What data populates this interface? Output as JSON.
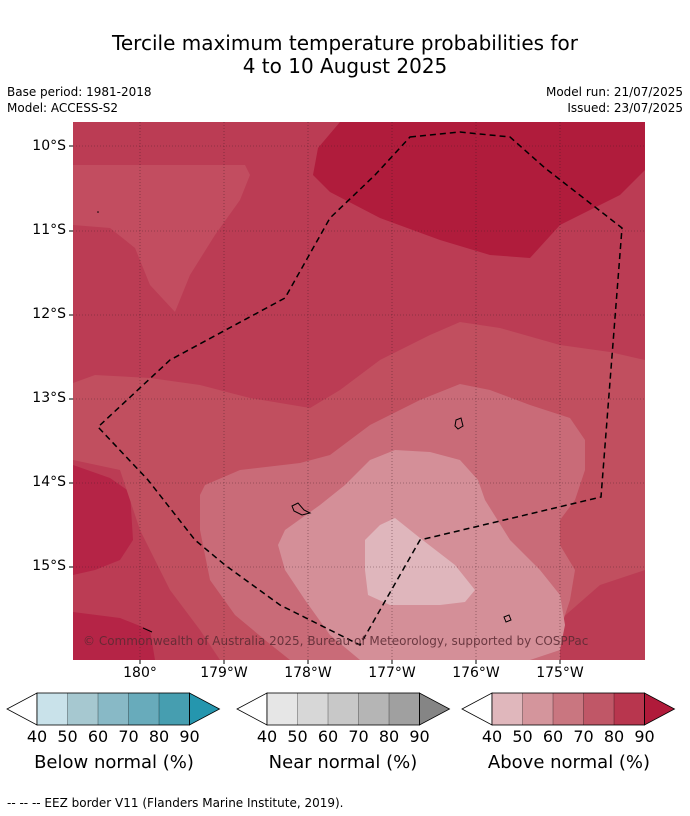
{
  "title_line1": "Tercile maximum temperature probabilities for",
  "title_line2": "4 to 10 August 2025",
  "base_period": "Base period: 1981-2018",
  "model": "Model: ACCESS-S2",
  "model_run": "Model run: 21/07/2025",
  "issued": "Issued: 23/07/2025",
  "lat_labels": [
    "10°S",
    "11°S",
    "12°S",
    "13°S",
    "14°S",
    "15°S"
  ],
  "lon_labels": [
    "180°",
    "179°W",
    "178°W",
    "177°W",
    "176°W",
    "175°W"
  ],
  "copyright": "© Commonwealth of Australia 2025, Bureau of Meteorology, supported by COSPPac",
  "legend": {
    "ticks": [
      "40",
      "50",
      "60",
      "70",
      "80",
      "90"
    ],
    "below": {
      "label": "Below normal (%)",
      "colors": [
        "#ffffff",
        "#c9e2ea",
        "#a6c8d0",
        "#88b9c6",
        "#68abbb",
        "#469eb0",
        "#2596ae"
      ]
    },
    "near": {
      "label": "Near normal (%)",
      "colors": [
        "#ffffff",
        "#e6e6e6",
        "#d7d7d7",
        "#c8c8c8",
        "#b5b5b5",
        "#a0a0a0",
        "#858585"
      ]
    },
    "above": {
      "label": "Above normal (%)",
      "colors": [
        "#ffffff",
        "#e0b7bc",
        "#d4959c",
        "#c97680",
        "#c05767",
        "#b8364e",
        "#b01a3a"
      ]
    }
  },
  "footer": "--  --  -- EEZ border V11 (Flanders Marine Institute, 2019)."
}
